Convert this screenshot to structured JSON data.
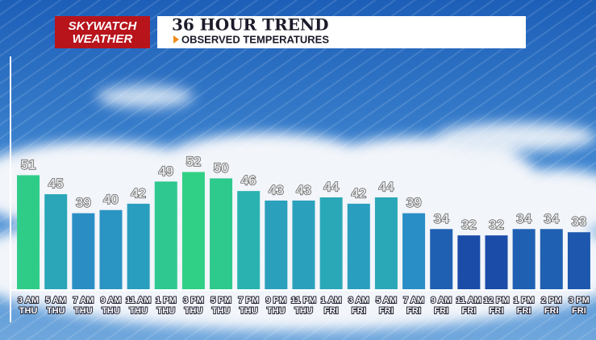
{
  "chart_data": {
    "type": "bar",
    "brand": [
      "SKYWATCH",
      "WEATHER"
    ],
    "title": "36 HOUR TREND",
    "subtitle": "OBSERVED TEMPERATURES",
    "categories": [
      [
        "3 AM",
        "THU"
      ],
      [
        "5 AM",
        "THU"
      ],
      [
        "7 AM",
        "THU"
      ],
      [
        "9 AM",
        "THU"
      ],
      [
        "11 AM",
        "THU"
      ],
      [
        "1 PM",
        "THU"
      ],
      [
        "3 PM",
        "THU"
      ],
      [
        "5 PM",
        "THU"
      ],
      [
        "7 PM",
        "THU"
      ],
      [
        "9 PM",
        "THU"
      ],
      [
        "11 PM",
        "THU"
      ],
      [
        "1 AM",
        "FRI"
      ],
      [
        "3 AM",
        "FRI"
      ],
      [
        "5 AM",
        "FRI"
      ],
      [
        "7 AM",
        "FRI"
      ],
      [
        "9 AM",
        "FRI"
      ],
      [
        "11 AM",
        "FRI"
      ],
      [
        "12 PM",
        "FRI"
      ],
      [
        "1 PM",
        "FRI"
      ],
      [
        "2 PM",
        "FRI"
      ],
      [
        "3 PM",
        "FRI"
      ]
    ],
    "values": [
      51,
      45,
      39,
      40,
      42,
      49,
      52,
      50,
      46,
      43,
      43,
      44,
      42,
      44,
      39,
      34,
      32,
      32,
      34,
      34,
      33
    ],
    "colors": [
      "#2fcc88",
      "#2aa6b8",
      "#2a8ec4",
      "#2a94c2",
      "#2a9ebe",
      "#2ec890",
      "#30d086",
      "#2ec98c",
      "#2ab2b0",
      "#2aa0bc",
      "#2aa0bc",
      "#2aa8b8",
      "#2a9ebe",
      "#2aa8b8",
      "#2a8ec6",
      "#1f60b2",
      "#1b4ca8",
      "#1b4ca8",
      "#1f60b2",
      "#1f60b2",
      "#1d58ae"
    ],
    "ylim": [
      15,
      88
    ]
  }
}
